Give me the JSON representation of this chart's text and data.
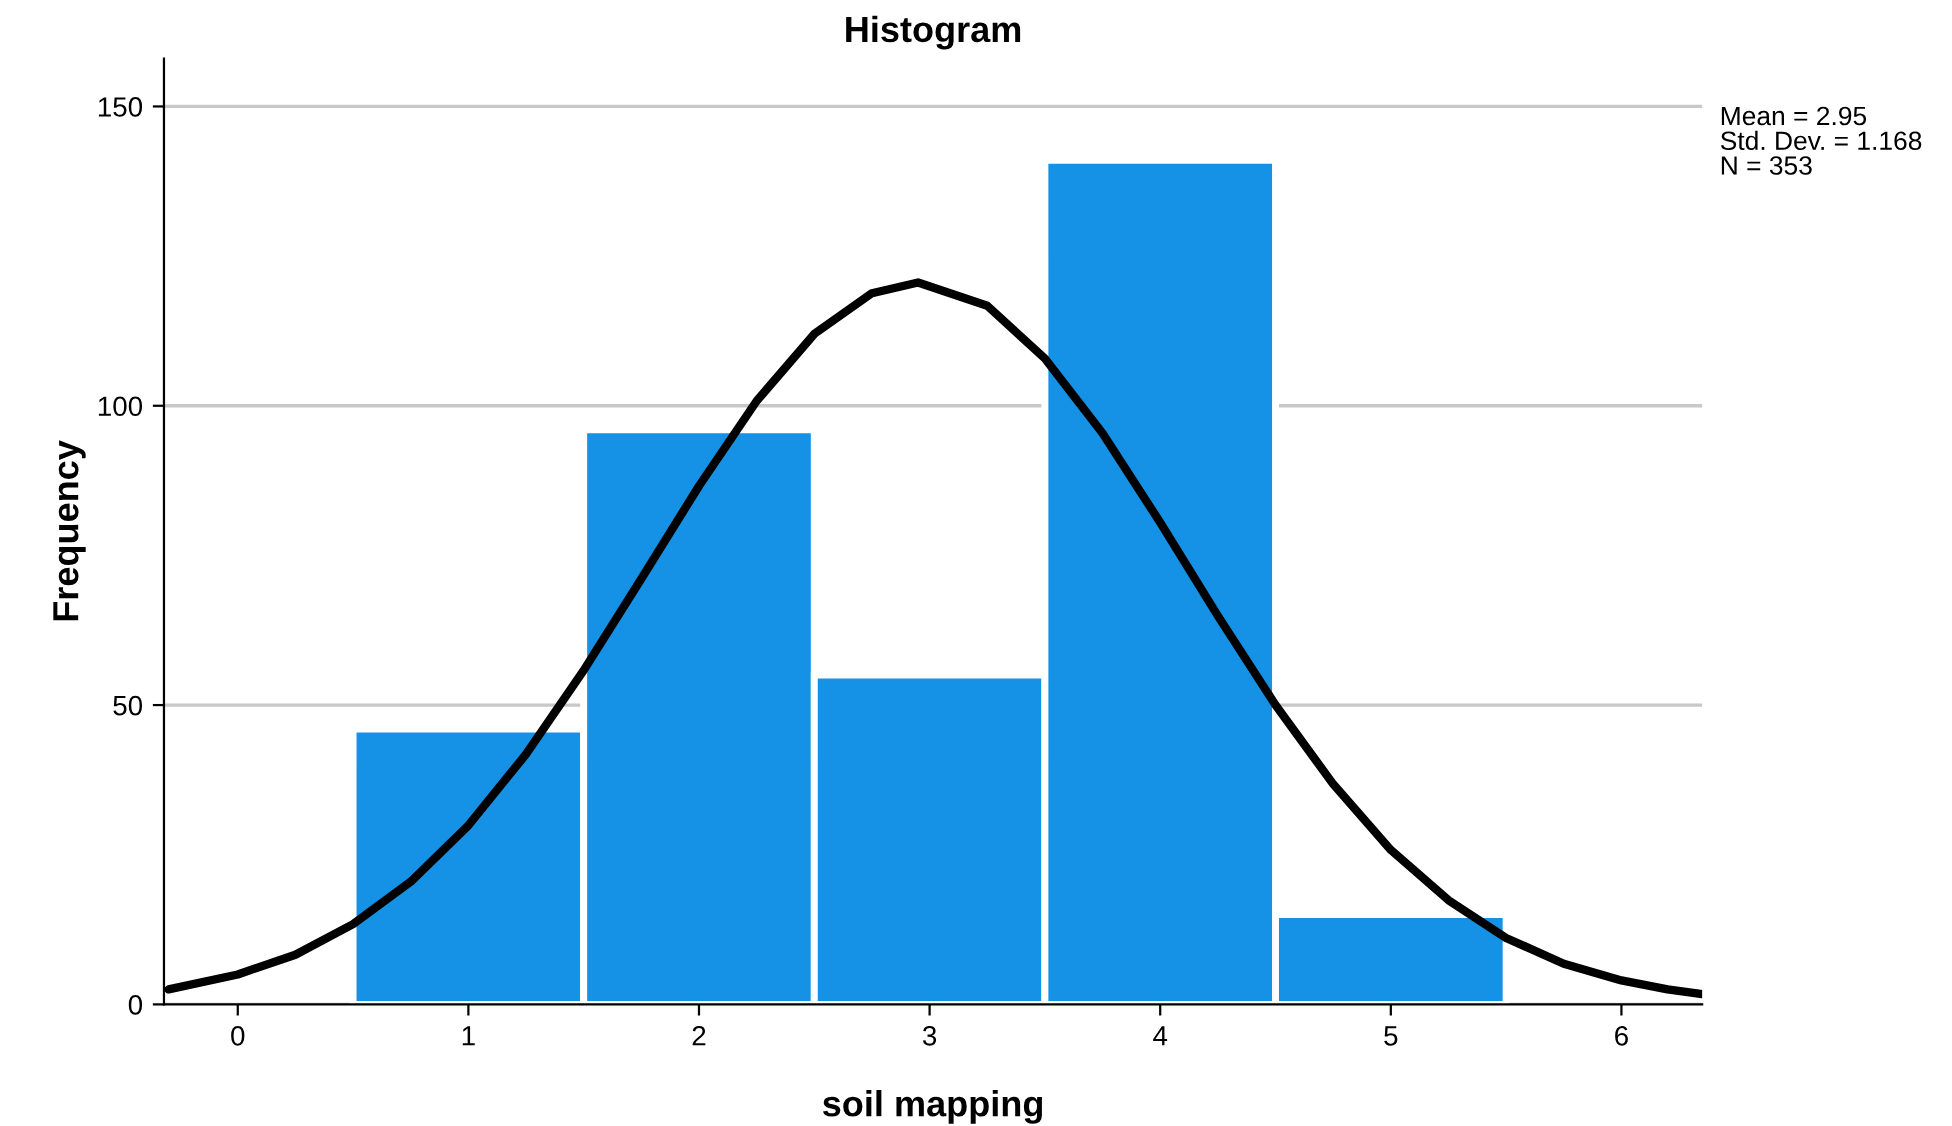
{
  "chart_data": {
    "type": "histogram",
    "title": "Histogram",
    "xlabel": "soil mapping",
    "ylabel": "Frequency",
    "bins": [
      0.5,
      1.5,
      2.5,
      3.5,
      4.5,
      5.5
    ],
    "values": [
      46,
      96,
      55,
      141,
      15
    ],
    "color": "#1591e6",
    "series": [
      {
        "type": "line",
        "color": "#000000",
        "x": [
          -0.3,
          0,
          0.25,
          0.5,
          0.75,
          1,
          1.25,
          1.5,
          1.75,
          2,
          2.25,
          2.5,
          2.75,
          2.95,
          3.25,
          3.5,
          3.75,
          4,
          4.25,
          4.5,
          4.75,
          5,
          5.25,
          5.5,
          5.75,
          6,
          6.2,
          6.35
        ],
        "values": [
          2.5,
          5,
          8.3,
          13.4,
          20.5,
          29.9,
          41.8,
          55.8,
          71.1,
          86.6,
          100.8,
          112,
          118.8,
          120.6,
          116.7,
          107.9,
          95.4,
          80.5,
          64.9,
          50,
          36.8,
          25.8,
          17.4,
          11.1,
          6.8,
          4,
          2.5,
          1.7
        ]
      }
    ],
    "xlim": [
      -0.32,
      6.35
    ],
    "ylim": [
      0,
      158
    ],
    "xticks": [
      0,
      1,
      2,
      3,
      4,
      5,
      6
    ],
    "yticks": [
      0,
      50,
      100,
      150
    ],
    "grid": "y",
    "annotations": [
      "Mean = 2.95",
      "Std. Dev. = 1.168",
      "N = 353"
    ]
  }
}
